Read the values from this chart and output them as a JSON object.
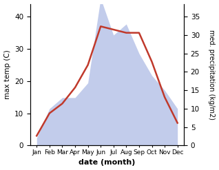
{
  "months": [
    "Jan",
    "Feb",
    "Mar",
    "Apr",
    "May",
    "Jun",
    "Jul",
    "Aug",
    "Sep",
    "Oct",
    "Nov",
    "Dec"
  ],
  "month_x": [
    1,
    2,
    3,
    4,
    5,
    6,
    7,
    8,
    9,
    10,
    11,
    12
  ],
  "temp": [
    3,
    10,
    13,
    18,
    25,
    37,
    36,
    35,
    35,
    26,
    15,
    7
  ],
  "precip_raw": [
    2,
    10,
    13,
    13,
    17,
    40,
    30,
    33,
    25,
    19,
    15,
    10
  ],
  "precip_scale_factor": 1.142857,
  "temp_color": "#c0392b",
  "precip_fill_color": "#b8c4e8",
  "precip_fill_alpha": 0.85,
  "temp_ylim": [
    0,
    44
  ],
  "temp_yticks": [
    0,
    10,
    20,
    30,
    40
  ],
  "precip_ylim": [
    0,
    38.5
  ],
  "precip_yticks": [
    0,
    5,
    10,
    15,
    20,
    25,
    30,
    35
  ],
  "xlabel": "date (month)",
  "ylabel_left": "max temp (C)",
  "ylabel_right": "med. precipitation (kg/m2)",
  "background_color": "#ffffff"
}
